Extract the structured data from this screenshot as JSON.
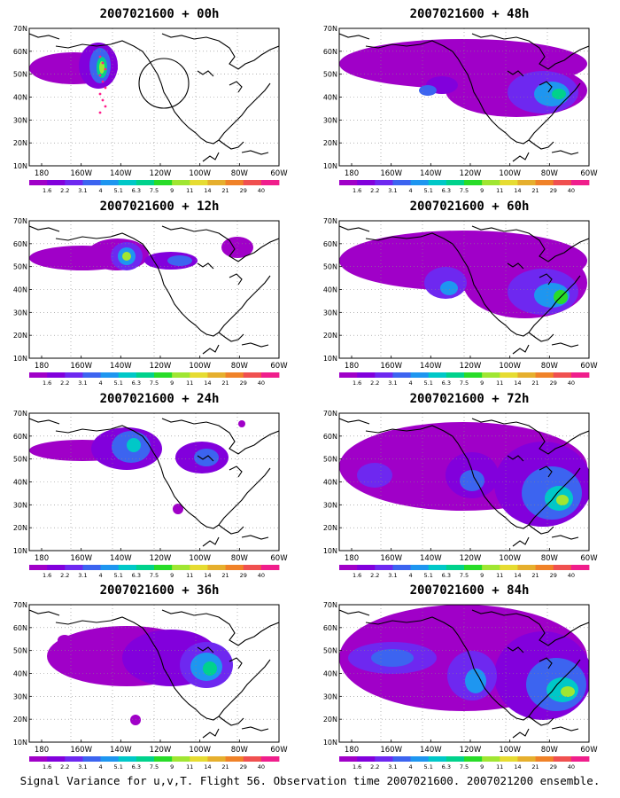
{
  "footer_caption": "Signal Variance for u,v,T. Flight 56. Observation time 2007021600. 2007021200 ensemble.",
  "lat_ticks": [
    "70N",
    "60N",
    "50N",
    "40N",
    "30N",
    "20N",
    "10N"
  ],
  "lon_ticks": [
    "180",
    "160W",
    "140W",
    "120W",
    "100W",
    "80W",
    "60W"
  ],
  "legend": {
    "labels": [
      "1.6",
      "2.2",
      "3.1",
      "4",
      "5.1",
      "6.3",
      "7.5",
      "9",
      "11",
      "14",
      "21",
      "29",
      "40"
    ],
    "colors": [
      "#a000c8",
      "#8200dc",
      "#6e28f0",
      "#3c64f0",
      "#1e96f0",
      "#00c8c8",
      "#00d28c",
      "#28dc28",
      "#a0e632",
      "#e6dc32",
      "#e6af2d",
      "#f08228",
      "#f05050",
      "#f01e8c"
    ]
  },
  "panels": [
    {
      "id": "p00",
      "title": "2007021600 + 00h"
    },
    {
      "id": "p48",
      "title": "2007021600 + 48h"
    },
    {
      "id": "p12",
      "title": "2007021600 + 12h"
    },
    {
      "id": "p60",
      "title": "2007021600 + 60h"
    },
    {
      "id": "p24",
      "title": "2007021600 + 24h"
    },
    {
      "id": "p72",
      "title": "2007021600 + 72h"
    },
    {
      "id": "p36",
      "title": "2007021600 + 36h"
    },
    {
      "id": "p84",
      "title": "2007021600 + 84h"
    }
  ]
}
